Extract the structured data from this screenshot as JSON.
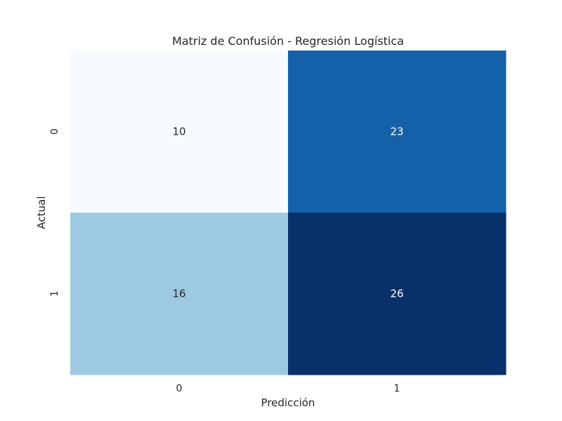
{
  "chart_data": {
    "type": "heatmap",
    "title": "Matriz de Confusión - Regresión Logística",
    "xlabel": "Predicción",
    "ylabel": "Actual",
    "x_categories": [
      "0",
      "1"
    ],
    "y_categories": [
      "0",
      "1"
    ],
    "values": [
      [
        10,
        23
      ],
      [
        16,
        26
      ]
    ],
    "colormap": "Blues",
    "colorbar": false,
    "grid": false,
    "colors": {
      "low": "#f7fbff",
      "mid_low": "#9ecae1",
      "mid_high": "#1561a9",
      "high": "#08306b",
      "text_on_light": "#262626",
      "text_on_dark": "#ffffff",
      "axis_text": "#262626"
    }
  }
}
